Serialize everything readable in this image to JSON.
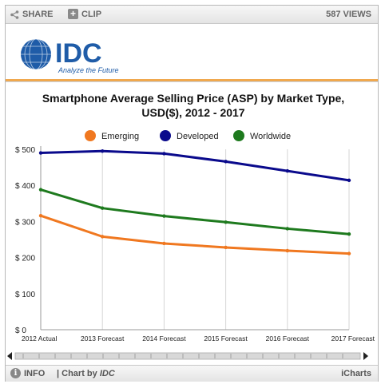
{
  "toolbar": {
    "share_label": "SHARE",
    "clip_label": "CLIP",
    "views": "587 VIEWS"
  },
  "logo": {
    "text": "IDC",
    "tagline": "Analyze the Future"
  },
  "footer": {
    "info_label": "INFO",
    "chart_by_prefix": "| Chart by ",
    "chart_by_brand": "IDC",
    "brand": "iCharts"
  },
  "colors": {
    "emerging": "#f07820",
    "developed": "#0a0a8c",
    "worldwide": "#1e7a1e",
    "logo_blue": "#1f5ca8",
    "accent": "#f0a84e"
  },
  "chart_data": {
    "type": "line",
    "title": "Smartphone Average Selling Price (ASP) by Market Type, USD($), 2012 - 2017",
    "title_lines": [
      "Smartphone Average Selling Price (ASP) by Market Type,",
      "USD($), 2012 - 2017"
    ],
    "categories": [
      "2012 Actual",
      "2013 Forecast",
      "2014 Forecast",
      "2015 Forecast",
      "2016 Forecast",
      "2017 Forecast"
    ],
    "series": [
      {
        "name": "Emerging",
        "color": "#f07820",
        "values": [
          316,
          258,
          239,
          228,
          219,
          211
        ]
      },
      {
        "name": "Developed",
        "color": "#0a0a8c",
        "values": [
          490,
          495,
          488,
          466,
          440,
          414
        ]
      },
      {
        "name": "Worldwide",
        "color": "#1e7a1e",
        "values": [
          388,
          337,
          315,
          298,
          280,
          265
        ]
      }
    ],
    "ylim": [
      0,
      500
    ],
    "yticks": [
      0,
      100,
      200,
      300,
      400,
      500
    ],
    "ytick_labels": [
      "$ 0",
      "$ 100",
      "$ 200",
      "$ 300",
      "$ 400",
      "$ 500"
    ],
    "xlabel": "",
    "ylabel": "",
    "grid": "vertical",
    "legend_position": "top"
  }
}
